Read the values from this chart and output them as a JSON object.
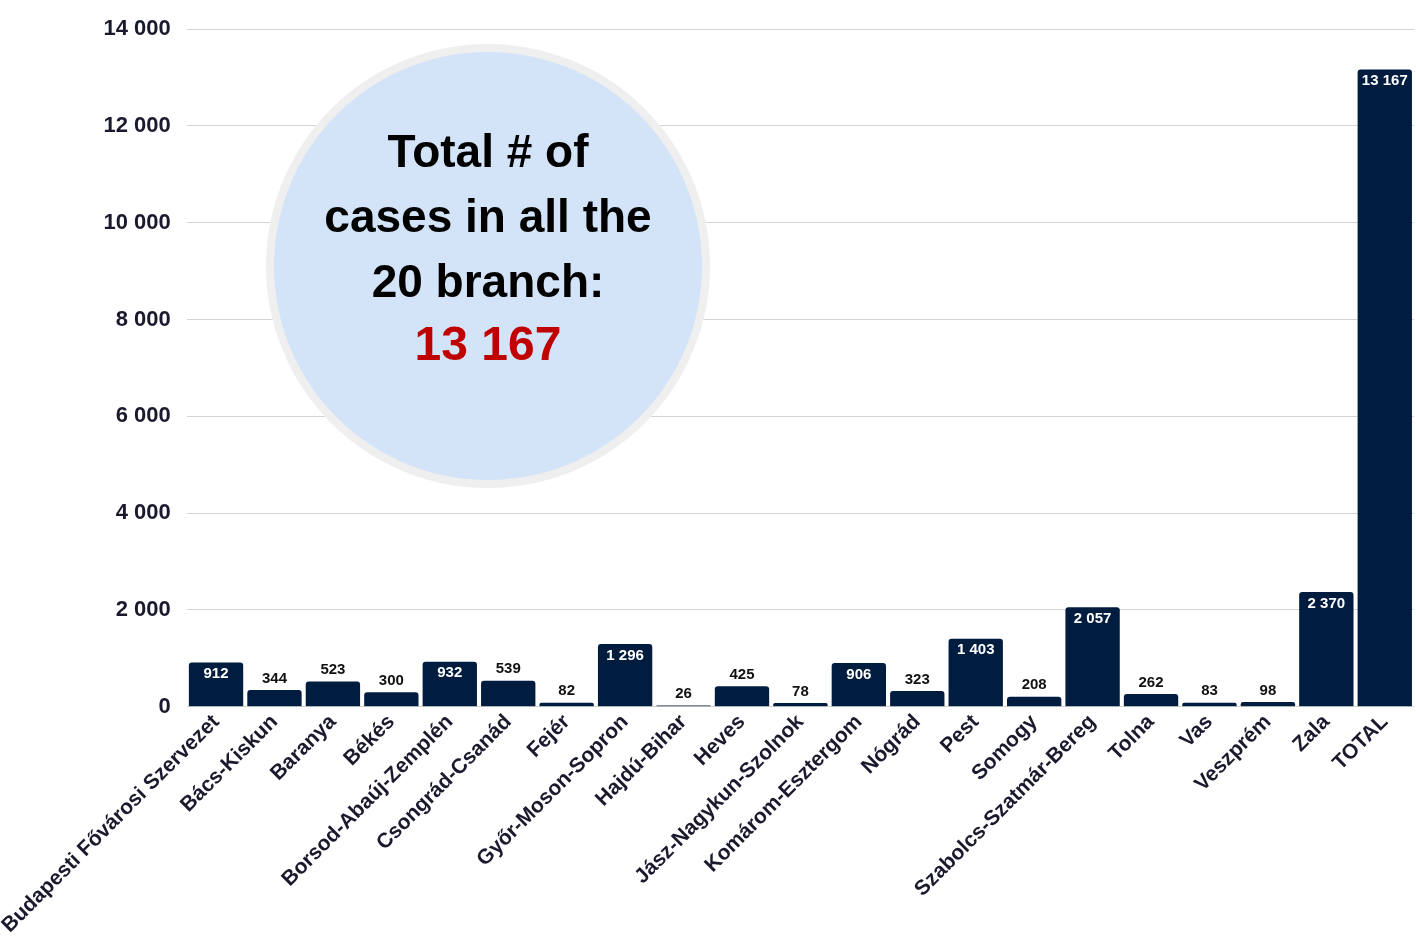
{
  "chart_data": {
    "type": "bar",
    "categories": [
      "Budapesti Fővárosi Szervezet",
      "Bács-Kiskun",
      "Baranya",
      "Békés",
      "Borsod-Abaúj-Zemplén",
      "Csongrád-Csanád",
      "Fejér",
      "Győr-Moson-Sopron",
      "Hajdú-Bihar",
      "Heves",
      "Jász-Nagykun-Szolnok",
      "Komárom-Esztergom",
      "Nógrád",
      "Pest",
      "Somogy",
      "Szabolcs-Szatmár-Bereg",
      "Tolna",
      "Vas",
      "Veszprém",
      "Zala",
      "TOTAL"
    ],
    "values": [
      912,
      344,
      523,
      300,
      932,
      539,
      82,
      1296,
      26,
      425,
      78,
      906,
      323,
      1403,
      208,
      2057,
      262,
      83,
      98,
      2370,
      13167
    ],
    "value_labels": [
      "912",
      "344",
      "523",
      "300",
      "932",
      "539",
      "82",
      "1 296",
      "26",
      "425",
      "78",
      "906",
      "323",
      "1 403",
      "208",
      "2 057",
      "262",
      "83",
      "98",
      "2 370",
      "13 167"
    ],
    "color": "#001d40",
    "ylim": [
      0,
      14000
    ],
    "yticks": [
      {
        "value": 0,
        "label": "0"
      },
      {
        "value": 2000,
        "label": "2 000"
      },
      {
        "value": 4000,
        "label": "4 000"
      },
      {
        "value": 6000,
        "label": "6 000"
      },
      {
        "value": 8000,
        "label": "8 000"
      },
      {
        "value": 10000,
        "label": "10 000"
      },
      {
        "value": 12000,
        "label": "12 000"
      },
      {
        "value": 14000,
        "label": "14 000"
      }
    ],
    "grid": "y",
    "annotations": [
      "Total # of cases in all the 20 branch:",
      "13 167"
    ]
  }
}
